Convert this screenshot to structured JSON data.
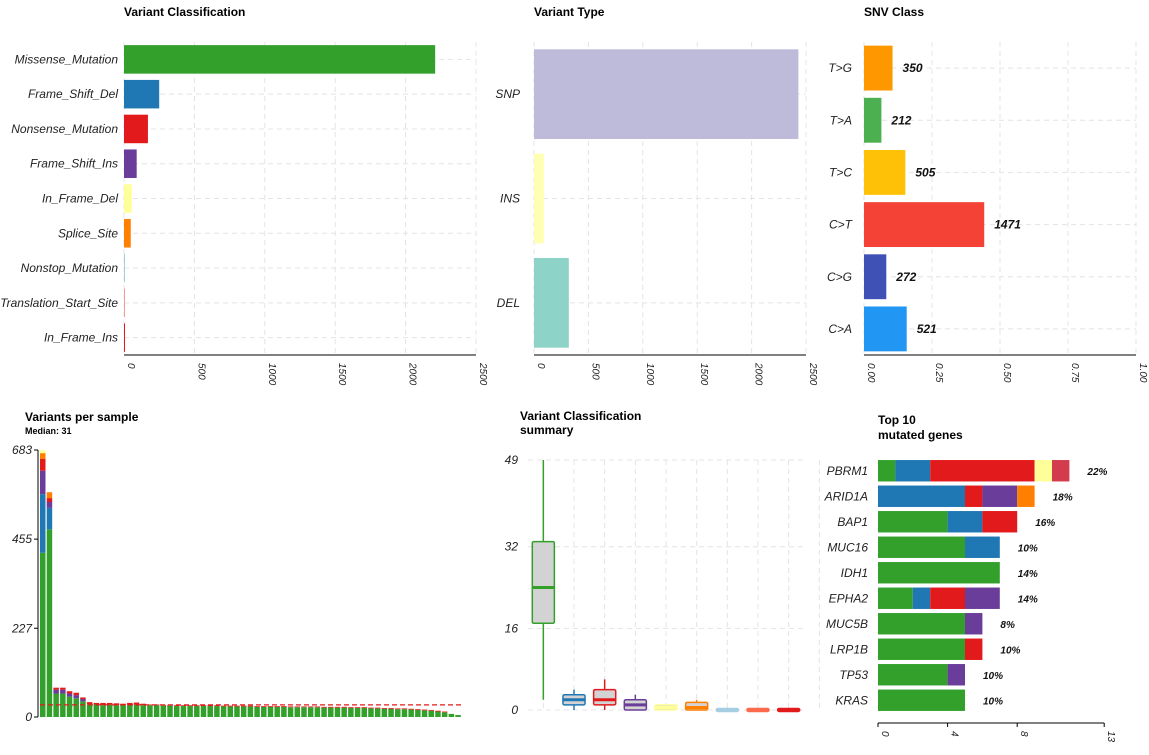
{
  "chart_data": [
    {
      "id": "variant_classification",
      "type": "bar",
      "orientation": "horizontal",
      "title": "Variant Classification",
      "categories": [
        "Missense_Mutation",
        "Frame_Shift_Del",
        "Nonsense_Mutation",
        "Frame_Shift_Ins",
        "In_Frame_Del",
        "Splice_Site",
        "Nonstop_Mutation",
        "Translation_Start_Site",
        "In_Frame_Ins"
      ],
      "values": [
        2210,
        250,
        170,
        90,
        55,
        48,
        5,
        3,
        2
      ],
      "colors": [
        "#33a02c",
        "#1f78b4",
        "#e31a1c",
        "#6a3d9a",
        "#ffff99",
        "#ff7f00",
        "#a6cee3",
        "#fb9a99",
        "#e31a1c"
      ],
      "xlim": [
        0,
        2500
      ],
      "ticks": [
        "0",
        "500",
        "1000",
        "1500",
        "2000",
        "2500"
      ],
      "grid": true
    },
    {
      "id": "variant_type",
      "type": "bar",
      "orientation": "horizontal",
      "title": "Variant Type",
      "categories": [
        "SNP",
        "INS",
        "DEL"
      ],
      "values": [
        2430,
        90,
        320
      ],
      "colors": [
        "#bebada",
        "#ffffb3",
        "#8dd3c7"
      ],
      "xlim": [
        0,
        2500
      ],
      "ticks": [
        "0",
        "500",
        "1000",
        "1500",
        "2000",
        "2500"
      ],
      "grid": true
    },
    {
      "id": "snv_class",
      "type": "bar",
      "orientation": "horizontal",
      "title": "SNV Class",
      "categories": [
        "T>G",
        "T>A",
        "T>C",
        "C>T",
        "C>G",
        "C>A"
      ],
      "values": [
        0.105,
        0.064,
        0.152,
        0.442,
        0.082,
        0.157
      ],
      "labels": [
        "350",
        "212",
        "505",
        "1471",
        "272",
        "521"
      ],
      "colors": [
        "#ff9800",
        "#4caf50",
        "#ffc107",
        "#f44336",
        "#3f51b5",
        "#2196f3"
      ],
      "xlim": [
        0,
        1
      ],
      "ticks": [
        "0.00",
        "0.25",
        "0.50",
        "0.75",
        "1.00"
      ],
      "grid": true
    },
    {
      "id": "variants_per_sample",
      "type": "bar",
      "stacked": true,
      "title": "Variants per sample",
      "subtitle": "Median: 31",
      "ylim": [
        0,
        683
      ],
      "ticks": [
        "0",
        "227",
        "455",
        "683"
      ],
      "median": 31,
      "segment_colors": [
        "#33a02c",
        "#1f78b4",
        "#6a3d9a",
        "#e31a1c",
        "#ff7f00",
        "#ffff99"
      ],
      "series": [
        [
          420,
          150,
          60,
          30,
          15,
          8
        ],
        [
          480,
          55,
          15,
          10,
          15,
          0
        ],
        [
          60,
          0,
          10,
          5,
          0,
          0
        ],
        [
          60,
          0,
          10,
          5,
          0,
          0
        ],
        [
          52,
          0,
          8,
          6,
          0,
          0
        ],
        [
          48,
          0,
          8,
          6,
          0,
          0
        ],
        [
          40,
          0,
          6,
          4,
          0,
          0
        ],
        [
          33,
          0,
          0,
          5,
          0,
          0
        ],
        [
          32,
          0,
          0,
          4,
          0,
          0
        ],
        [
          30,
          0,
          0,
          6,
          0,
          0
        ],
        [
          31,
          0,
          0,
          5,
          0,
          0
        ],
        [
          30,
          0,
          0,
          5,
          0,
          0
        ],
        [
          30,
          0,
          0,
          4,
          0,
          0
        ],
        [
          30,
          0,
          0,
          6,
          0,
          0
        ],
        [
          31,
          0,
          0,
          6,
          0,
          0
        ],
        [
          30,
          0,
          0,
          4,
          0,
          0
        ],
        [
          30,
          0,
          0,
          2,
          0,
          0
        ],
        [
          30,
          0,
          0,
          2,
          0,
          0
        ],
        [
          29,
          0,
          0,
          2,
          0,
          0
        ],
        [
          29,
          0,
          0,
          2,
          0,
          0
        ],
        [
          28,
          0,
          0,
          2,
          0,
          0
        ],
        [
          28,
          0,
          0,
          2,
          0,
          0
        ],
        [
          28,
          0,
          0,
          2,
          0,
          0
        ],
        [
          28,
          0,
          0,
          2,
          0,
          0
        ],
        [
          28,
          0,
          0,
          2,
          0,
          0
        ],
        [
          28,
          0,
          0,
          2,
          0,
          0
        ],
        [
          28,
          0,
          0,
          2,
          0,
          0
        ],
        [
          27,
          0,
          0,
          2,
          0,
          0
        ],
        [
          27,
          0,
          0,
          2,
          0,
          0
        ],
        [
          27,
          0,
          0,
          2,
          0,
          0
        ],
        [
          27,
          0,
          0,
          2,
          0,
          0
        ],
        [
          27,
          0,
          0,
          2,
          0,
          0
        ],
        [
          26,
          0,
          0,
          2,
          0,
          0
        ],
        [
          26,
          0,
          0,
          2,
          0,
          0
        ],
        [
          26,
          0,
          0,
          2,
          0,
          0
        ],
        [
          26,
          0,
          0,
          2,
          0,
          0
        ],
        [
          26,
          0,
          0,
          2,
          0,
          0
        ],
        [
          25,
          0,
          0,
          2,
          0,
          0
        ],
        [
          25,
          0,
          0,
          2,
          0,
          0
        ],
        [
          25,
          0,
          0,
          2,
          0,
          0
        ],
        [
          25,
          0,
          0,
          2,
          0,
          0
        ],
        [
          25,
          0,
          0,
          2,
          0,
          0
        ],
        [
          24,
          0,
          0,
          2,
          0,
          0
        ],
        [
          24,
          0,
          0,
          2,
          0,
          0
        ],
        [
          24,
          0,
          0,
          2,
          0,
          0
        ],
        [
          24,
          0,
          0,
          2,
          0,
          0
        ],
        [
          23,
          0,
          0,
          2,
          0,
          0
        ],
        [
          23,
          0,
          0,
          2,
          0,
          0
        ],
        [
          23,
          0,
          0,
          2,
          0,
          0
        ],
        [
          22,
          0,
          0,
          2,
          0,
          0
        ],
        [
          22,
          0,
          0,
          2,
          0,
          0
        ],
        [
          21,
          0,
          0,
          2,
          0,
          0
        ],
        [
          21,
          0,
          0,
          2,
          0,
          0
        ],
        [
          20,
          0,
          0,
          2,
          0,
          0
        ],
        [
          20,
          0,
          0,
          2,
          0,
          0
        ],
        [
          19,
          0,
          0,
          2,
          0,
          0
        ],
        [
          18,
          0,
          0,
          2,
          0,
          0
        ],
        [
          17,
          0,
          0,
          2,
          0,
          0
        ],
        [
          16,
          0,
          0,
          2,
          0,
          0
        ],
        [
          14,
          0,
          0,
          2,
          0,
          0
        ],
        [
          12,
          0,
          0,
          2,
          0,
          0
        ],
        [
          8,
          0,
          0,
          0,
          0,
          0
        ],
        [
          5,
          0,
          0,
          0,
          0,
          0
        ]
      ]
    },
    {
      "id": "variant_classification_summary",
      "type": "box",
      "title": "Variant Classification\nsummary",
      "ylim": [
        0,
        49
      ],
      "ticks": [
        "0",
        "16",
        "32",
        "49"
      ],
      "grid": true,
      "boxes": [
        {
          "color": "#33a02c",
          "fill": "#d3d3d3",
          "min": 2,
          "q1": 17,
          "median": 24,
          "q3": 33,
          "max": 49
        },
        {
          "color": "#1f78b4",
          "fill": "#d3d3d3",
          "min": 0,
          "q1": 1,
          "median": 2,
          "q3": 3,
          "max": 4
        },
        {
          "color": "#e31a1c",
          "fill": "#d3d3d3",
          "min": 0,
          "q1": 1,
          "median": 2,
          "q3": 4,
          "max": 6
        },
        {
          "color": "#6a3d9a",
          "fill": "#d3d3d3",
          "min": 0,
          "q1": 0,
          "median": 1,
          "q3": 2,
          "max": 3
        },
        {
          "color": "#ffff99",
          "fill": "#d3d3d3",
          "min": 0,
          "q1": 0,
          "median": 0.5,
          "q3": 1,
          "max": 1
        },
        {
          "color": "#ff7f00",
          "fill": "#d3d3d3",
          "min": 0,
          "q1": 0,
          "median": 0.5,
          "q3": 1.5,
          "max": 2
        },
        {
          "color": "#a6cee3",
          "fill": "#d3d3d3",
          "min": 0,
          "q1": 0,
          "median": 0,
          "q3": 0.3,
          "max": 0.3
        },
        {
          "color": "#fb6a4a",
          "fill": "#d3d3d3",
          "min": 0,
          "q1": 0,
          "median": 0,
          "q3": 0.3,
          "max": 0.3
        },
        {
          "color": "#e31a1c",
          "fill": "#d3d3d3",
          "min": 0,
          "q1": 0,
          "median": 0,
          "q3": 0.3,
          "max": 0.3
        }
      ]
    },
    {
      "id": "top10_genes",
      "type": "bar",
      "stacked": true,
      "orientation": "horizontal",
      "title": "Top 10\nmutated genes",
      "xlim": [
        0,
        13
      ],
      "ticks": [
        "0",
        "4",
        "8",
        "13"
      ],
      "categories": [
        "PBRM1",
        "ARID1A",
        "BAP1",
        "MUC16",
        "IDH1",
        "EPHA2",
        "MUC5B",
        "LRP1B",
        "TP53",
        "KRAS"
      ],
      "labels": [
        "22%",
        "18%",
        "16%",
        "10%",
        "14%",
        "14%",
        "8%",
        "10%",
        "10%",
        "10%"
      ],
      "segments": [
        [
          {
            "c": "#33a02c",
            "v": 1
          },
          {
            "c": "#1f78b4",
            "v": 2
          },
          {
            "c": "#e31a1c",
            "v": 6
          },
          {
            "c": "#ffff99",
            "v": 1
          },
          {
            "c": "#d33c4c",
            "v": 1
          }
        ],
        [
          {
            "c": "#1f78b4",
            "v": 5
          },
          {
            "c": "#e31a1c",
            "v": 1
          },
          {
            "c": "#6a3d9a",
            "v": 2
          },
          {
            "c": "#ff7f00",
            "v": 1
          }
        ],
        [
          {
            "c": "#33a02c",
            "v": 4
          },
          {
            "c": "#1f78b4",
            "v": 2
          },
          {
            "c": "#e31a1c",
            "v": 2
          }
        ],
        [
          {
            "c": "#33a02c",
            "v": 5
          },
          {
            "c": "#1f78b4",
            "v": 2
          }
        ],
        [
          {
            "c": "#33a02c",
            "v": 7
          }
        ],
        [
          {
            "c": "#33a02c",
            "v": 2
          },
          {
            "c": "#1f78b4",
            "v": 1
          },
          {
            "c": "#e31a1c",
            "v": 2
          },
          {
            "c": "#6a3d9a",
            "v": 2
          }
        ],
        [
          {
            "c": "#33a02c",
            "v": 5
          },
          {
            "c": "#6a3d9a",
            "v": 1
          }
        ],
        [
          {
            "c": "#33a02c",
            "v": 5
          },
          {
            "c": "#e31a1c",
            "v": 1
          }
        ],
        [
          {
            "c": "#33a02c",
            "v": 4
          },
          {
            "c": "#6a3d9a",
            "v": 1
          }
        ],
        [
          {
            "c": "#33a02c",
            "v": 5
          }
        ]
      ]
    }
  ]
}
